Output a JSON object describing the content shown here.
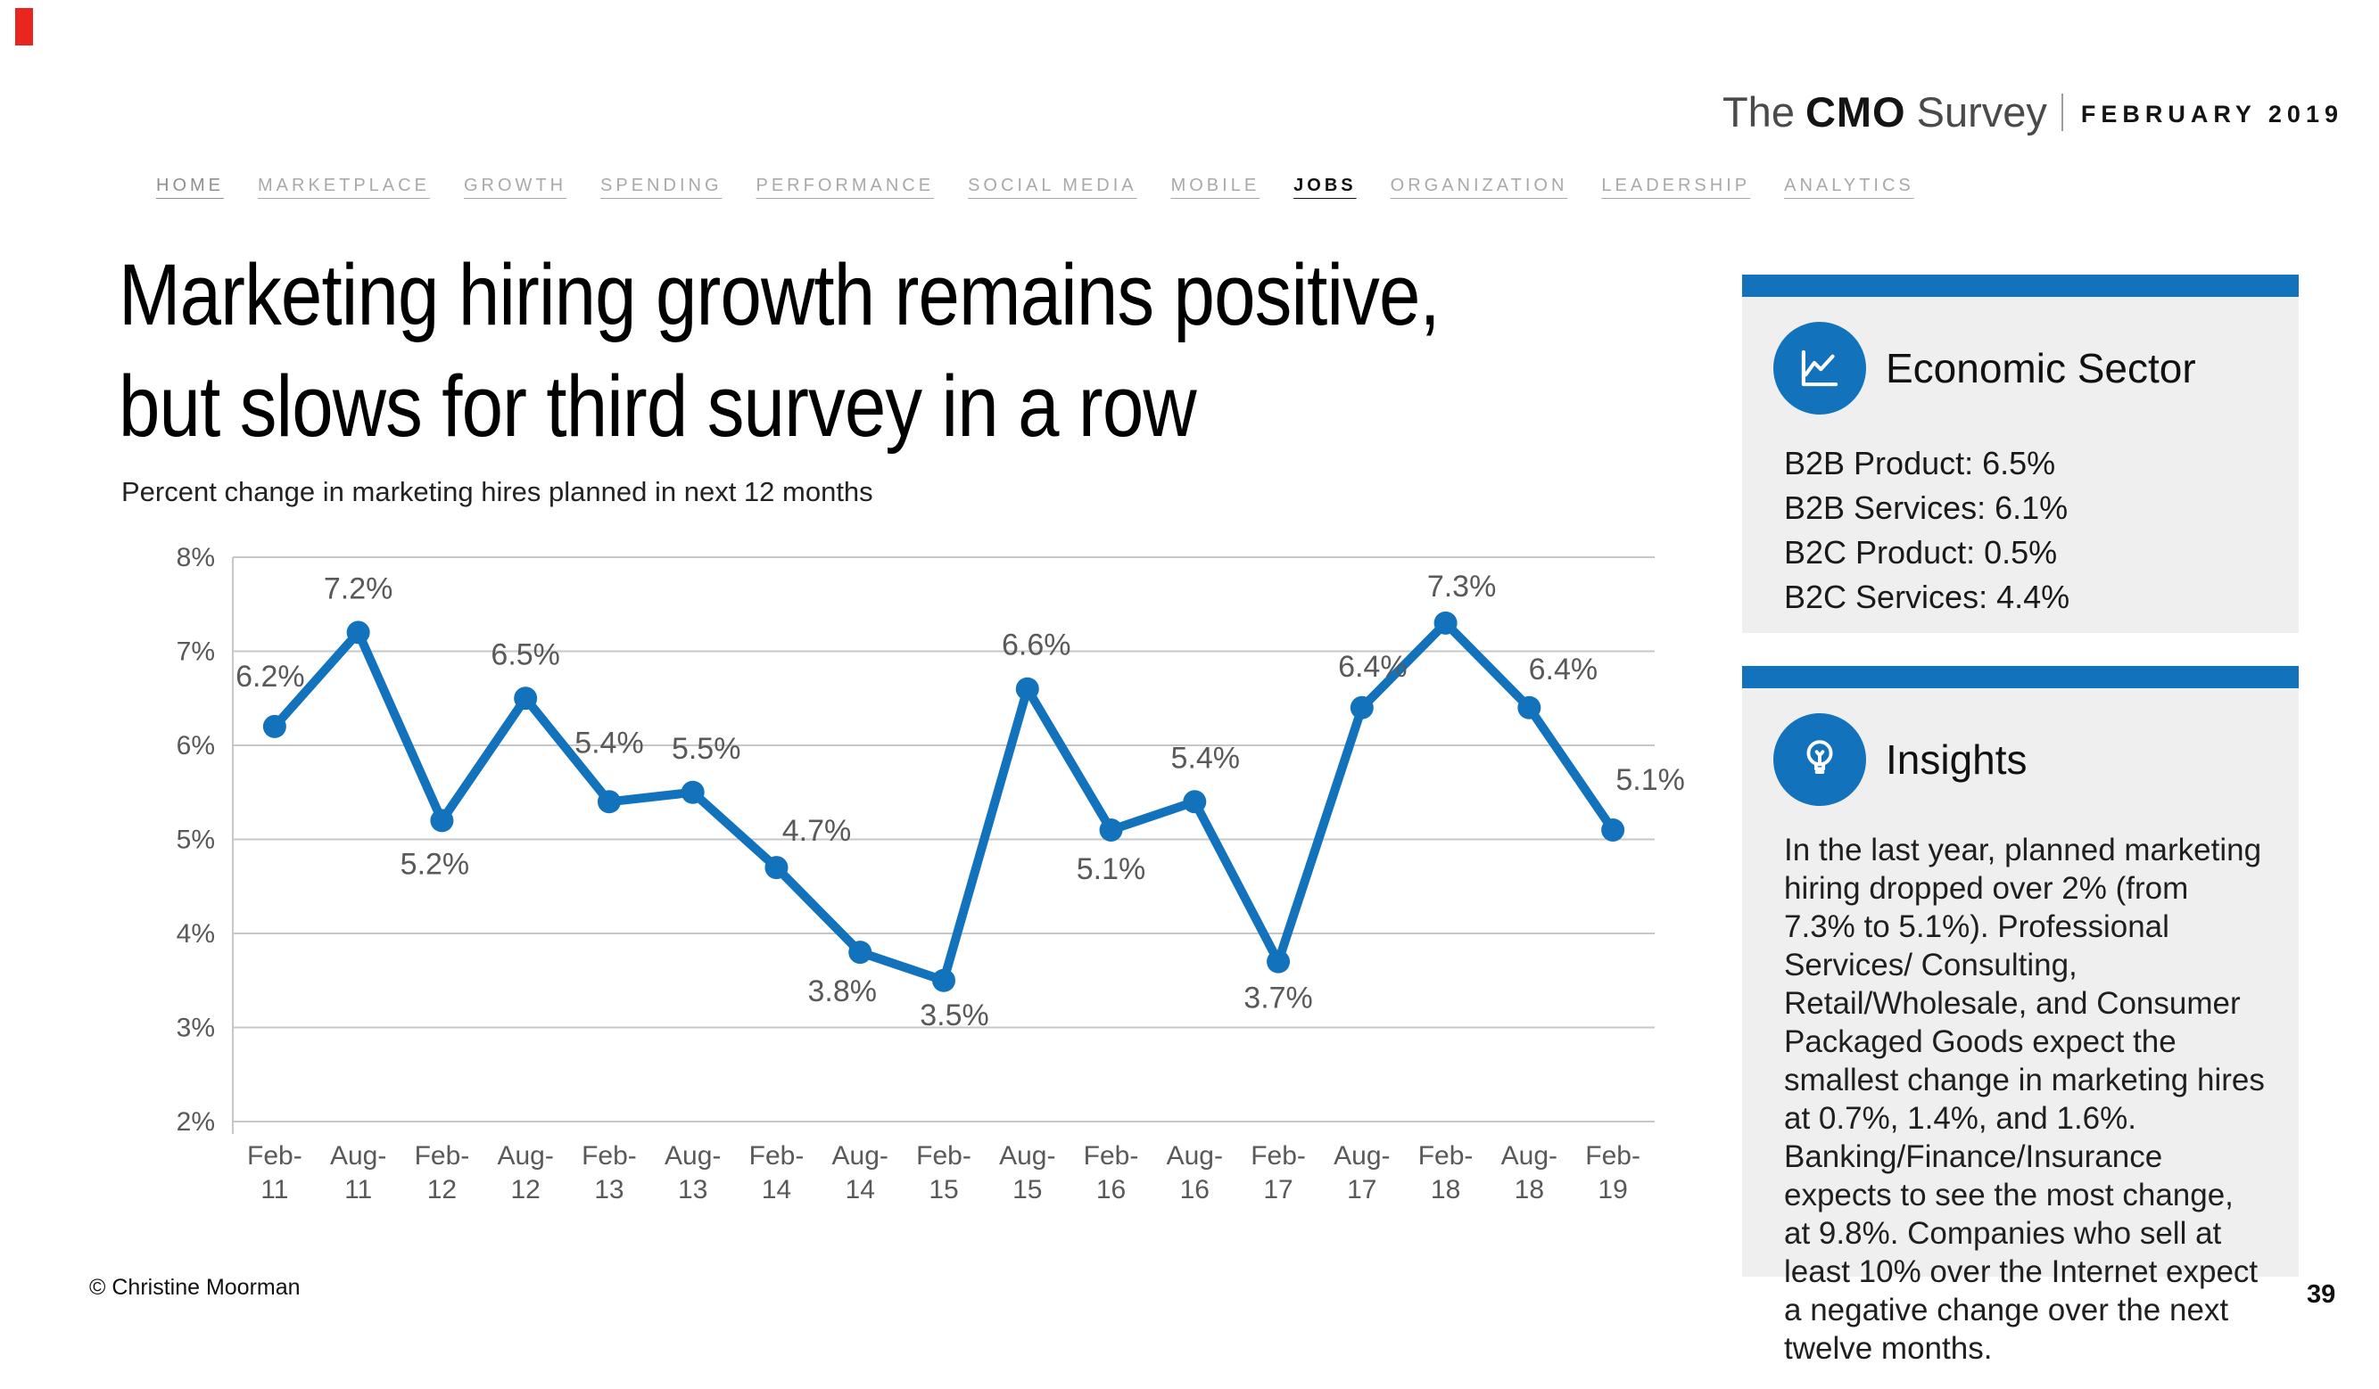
{
  "brand": {
    "name_the": "The",
    "name_cmo": "CMO",
    "name_survey": "Survey",
    "edition": "FEBRUARY 2019"
  },
  "nav": {
    "items": [
      {
        "label": "HOME",
        "state": "muted-dark"
      },
      {
        "label": "MARKETPLACE",
        "state": "muted"
      },
      {
        "label": "GROWTH",
        "state": "muted"
      },
      {
        "label": "SPENDING",
        "state": "muted"
      },
      {
        "label": "PERFORMANCE",
        "state": "muted"
      },
      {
        "label": "SOCIAL MEDIA",
        "state": "muted"
      },
      {
        "label": "MOBILE",
        "state": "muted"
      },
      {
        "label": "JOBS",
        "state": "active"
      },
      {
        "label": "ORGANIZATION",
        "state": "muted"
      },
      {
        "label": "LEADERSHIP",
        "state": "muted"
      },
      {
        "label": "ANALYTICS",
        "state": "muted"
      }
    ]
  },
  "title": {
    "line1": "Marketing hiring growth remains positive,",
    "line2": "but slows for third survey in a row"
  },
  "subtitle": "Percent change in marketing hires planned in next 12 months",
  "chart_data": {
    "type": "line",
    "title": "Percent change in marketing hires planned in next 12 months",
    "categories": [
      "Feb-11",
      "Aug-11",
      "Feb-12",
      "Aug-12",
      "Feb-13",
      "Aug-13",
      "Feb-14",
      "Aug-14",
      "Feb-15",
      "Aug-15",
      "Feb-16",
      "Aug-16",
      "Feb-17",
      "Aug-17",
      "Feb-18",
      "Aug-18",
      "Feb-19"
    ],
    "values": [
      6.2,
      7.2,
      5.2,
      6.5,
      5.4,
      5.5,
      4.7,
      3.8,
      3.5,
      6.6,
      5.1,
      5.4,
      3.7,
      6.4,
      7.3,
      6.4,
      5.1
    ],
    "point_labels": [
      "6.2%",
      "7.2%",
      "5.2%",
      "6.5%",
      "5.4%",
      "5.5%",
      "4.7%",
      "3.8%",
      "3.5%",
      "6.6%",
      "5.1%",
      "5.4%",
      "3.7%",
      "6.4%",
      "7.3%",
      "6.4%",
      "5.1%"
    ],
    "yticks": {
      "labels": [
        "8%",
        "7%",
        "6%",
        "5%",
        "4%",
        "3%",
        "2%"
      ],
      "values": [
        8,
        7,
        6,
        5,
        4,
        3,
        2
      ]
    },
    "ylim": [
      2,
      8
    ],
    "xlabel": "",
    "ylabel": "",
    "grid": true,
    "legend": "none",
    "line_color": "#1272bc",
    "label_color": "#595959",
    "grid_color": "#c7c7c7"
  },
  "sidebar": {
    "economic_sector": {
      "title": "Economic Sector",
      "icon": "line-chart-icon",
      "items": [
        "B2B Product: 6.5%",
        "B2B Services: 6.1%",
        "B2C Product: 0.5%",
        "B2C Services: 4.4%"
      ]
    },
    "insights": {
      "title": "Insights",
      "icon": "lightbulb-icon",
      "text": "In the last year, planned marketing hiring dropped over 2% (from 7.3% to 5.1%). Professional Services/ Consulting, Retail/Wholesale, and Consumer Packaged Goods expect the smallest change in marketing hires at 0.7%, 1.4%, and 1.6%. Banking/Finance/Insurance expects to see the most change, at 9.8%. Companies who sell at least 10% over the Internet expect a negative change over the next twelve months."
    }
  },
  "footer": {
    "copyright": "© Christine Moorman",
    "page_number": "39"
  },
  "colors": {
    "accent_blue": "#1272bc",
    "accent_red": "#e8251f",
    "panel_gray": "#efefef",
    "grid_gray": "#c7c7c7",
    "axis_text": "#595959",
    "nav_gray": "#a9a9a9"
  }
}
